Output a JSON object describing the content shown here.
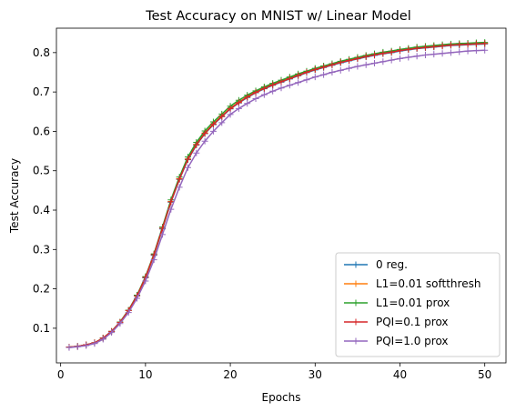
{
  "chart_data": {
    "type": "line",
    "title": "Test Accuracy on MNIST w/ Linear Model",
    "xlabel": "Epochs",
    "ylabel": "Test Accuracy",
    "xlim": [
      -0.5,
      52.5
    ],
    "ylim": [
      0.012,
      0.862
    ],
    "xticks": [
      0,
      10,
      20,
      30,
      40,
      50
    ],
    "xtick_labels": [
      "0",
      "10",
      "20",
      "30",
      "40",
      "50"
    ],
    "yticks": [
      0.1,
      0.2,
      0.3,
      0.4,
      0.5,
      0.6,
      0.7,
      0.8
    ],
    "ytick_labels": [
      "0.1",
      "0.2",
      "0.3",
      "0.4",
      "0.5",
      "0.6",
      "0.7",
      "0.8"
    ],
    "grid": false,
    "legend_position": "lower-right",
    "marker": "plus",
    "x": [
      1,
      2,
      3,
      4,
      5,
      6,
      7,
      8,
      9,
      10,
      11,
      12,
      13,
      14,
      15,
      16,
      17,
      18,
      19,
      20,
      21,
      22,
      23,
      24,
      25,
      26,
      27,
      28,
      29,
      30,
      31,
      32,
      33,
      34,
      35,
      36,
      37,
      38,
      39,
      40,
      41,
      42,
      43,
      44,
      45,
      46,
      47,
      48,
      49,
      50
    ],
    "series": [
      {
        "name": "0 reg.",
        "color": "#1f77b4",
        "values": [
          0.052,
          0.054,
          0.058,
          0.063,
          0.075,
          0.092,
          0.115,
          0.145,
          0.182,
          0.228,
          0.285,
          0.352,
          0.42,
          0.478,
          0.528,
          0.565,
          0.594,
          0.617,
          0.637,
          0.657,
          0.672,
          0.686,
          0.698,
          0.708,
          0.717,
          0.725,
          0.733,
          0.741,
          0.749,
          0.756,
          0.762,
          0.768,
          0.774,
          0.779,
          0.784,
          0.789,
          0.793,
          0.797,
          0.8,
          0.804,
          0.807,
          0.81,
          0.812,
          0.814,
          0.816,
          0.818,
          0.819,
          0.82,
          0.821,
          0.822
        ]
      },
      {
        "name": "L1=0.01 softthresh",
        "color": "#ff7f0e",
        "values": [
          0.052,
          0.054,
          0.058,
          0.063,
          0.075,
          0.092,
          0.115,
          0.145,
          0.183,
          0.229,
          0.287,
          0.354,
          0.422,
          0.48,
          0.53,
          0.567,
          0.596,
          0.619,
          0.639,
          0.659,
          0.674,
          0.688,
          0.7,
          0.71,
          0.719,
          0.727,
          0.735,
          0.743,
          0.751,
          0.758,
          0.764,
          0.77,
          0.776,
          0.781,
          0.786,
          0.791,
          0.795,
          0.799,
          0.802,
          0.806,
          0.809,
          0.812,
          0.814,
          0.816,
          0.818,
          0.82,
          0.821,
          0.822,
          0.823,
          0.824
        ]
      },
      {
        "name": "L1=0.01 prox",
        "color": "#2ca02c",
        "values": [
          0.052,
          0.054,
          0.058,
          0.063,
          0.075,
          0.092,
          0.116,
          0.146,
          0.184,
          0.231,
          0.289,
          0.357,
          0.426,
          0.484,
          0.535,
          0.572,
          0.601,
          0.624,
          0.644,
          0.664,
          0.679,
          0.692,
          0.703,
          0.713,
          0.722,
          0.73,
          0.738,
          0.746,
          0.753,
          0.76,
          0.766,
          0.772,
          0.778,
          0.783,
          0.788,
          0.793,
          0.797,
          0.801,
          0.804,
          0.808,
          0.811,
          0.814,
          0.816,
          0.818,
          0.82,
          0.822,
          0.823,
          0.824,
          0.825,
          0.826
        ]
      },
      {
        "name": "PQI=0.1 prox",
        "color": "#d62728",
        "values": [
          0.052,
          0.054,
          0.058,
          0.063,
          0.075,
          0.092,
          0.115,
          0.145,
          0.182,
          0.229,
          0.287,
          0.354,
          0.421,
          0.479,
          0.529,
          0.566,
          0.595,
          0.618,
          0.638,
          0.658,
          0.673,
          0.687,
          0.699,
          0.709,
          0.718,
          0.726,
          0.734,
          0.742,
          0.75,
          0.757,
          0.763,
          0.769,
          0.775,
          0.78,
          0.785,
          0.79,
          0.794,
          0.798,
          0.801,
          0.805,
          0.808,
          0.811,
          0.813,
          0.815,
          0.817,
          0.819,
          0.82,
          0.821,
          0.822,
          0.823
        ]
      },
      {
        "name": "PQI=1.0 prox",
        "color": "#9467bd",
        "values": [
          0.051,
          0.053,
          0.056,
          0.061,
          0.072,
          0.089,
          0.112,
          0.14,
          0.176,
          0.22,
          0.274,
          0.338,
          0.402,
          0.458,
          0.508,
          0.545,
          0.575,
          0.6,
          0.622,
          0.643,
          0.658,
          0.671,
          0.683,
          0.693,
          0.702,
          0.71,
          0.717,
          0.724,
          0.731,
          0.738,
          0.744,
          0.75,
          0.755,
          0.76,
          0.765,
          0.769,
          0.773,
          0.777,
          0.781,
          0.785,
          0.788,
          0.791,
          0.794,
          0.796,
          0.798,
          0.8,
          0.802,
          0.804,
          0.805,
          0.806
        ]
      }
    ]
  }
}
